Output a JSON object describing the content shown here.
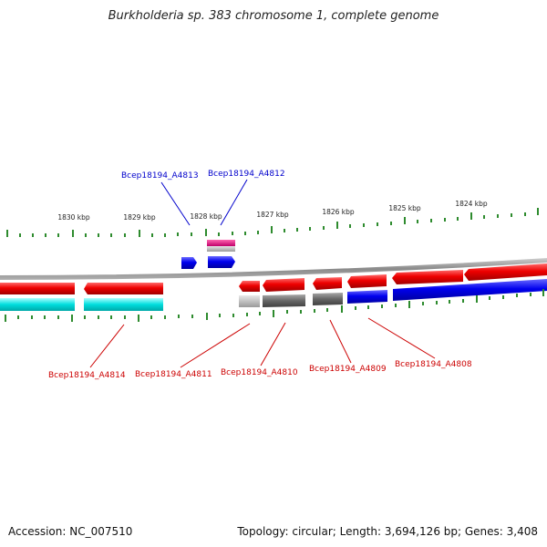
{
  "title": "Burkholderia sp. 383 chromosome 1, complete genome",
  "footer": {
    "accession": "Accession: NC_007510",
    "summary": "Topology: circular; Length: 3,694,126 bp; Genes: 3,408"
  },
  "scale_labels": [
    "1830 kbp",
    "1829 kbp",
    "1828 kbp",
    "1827 kbp",
    "1826 kbp",
    "1825 kbp",
    "1824 kbp"
  ],
  "genes_top": [
    {
      "label": "Bcep18194_A4813",
      "color": "#0000cc"
    },
    {
      "label": "Bcep18194_A4812",
      "color": "#0000cc"
    }
  ],
  "genes_bottom": [
    {
      "label": "Bcep18194_A4814",
      "color": "#cc0000"
    },
    {
      "label": "Bcep18194_A4811",
      "color": "#cc0000"
    },
    {
      "label": "Bcep18194_A4810",
      "color": "#cc0000"
    },
    {
      "label": "Bcep18194_A4809",
      "color": "#cc0000"
    },
    {
      "label": "Bcep18194_A4808",
      "color": "#cc0000"
    }
  ],
  "colors": {
    "cds": "#ee0000",
    "rna": "#0000ee",
    "cyan": "#00d8d8",
    "magenta": "#e0007a",
    "gray": "#707070",
    "backbone": "#8a8a8a",
    "tick": "#2e8b2e"
  }
}
